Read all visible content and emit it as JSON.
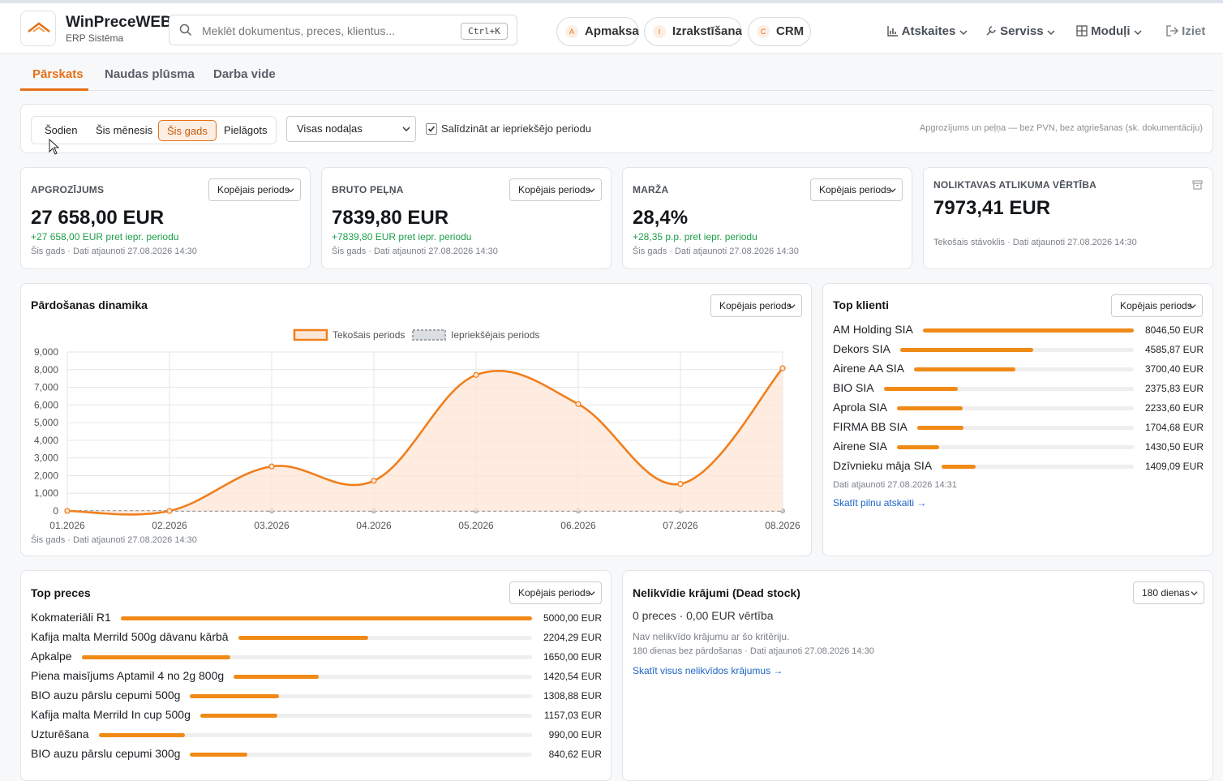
{
  "app": {
    "name": "WinPreceWEB",
    "subtitle": "ERP Sistēma"
  },
  "search": {
    "placeholder": "Meklēt dokumentus, preces, klientus...",
    "shortcut": "Ctrl+K"
  },
  "quick_links": [
    {
      "badge": "A",
      "label": "Apmaksa"
    },
    {
      "badge": "I",
      "label": "Izrakstīšana"
    },
    {
      "badge": "C",
      "label": "CRM"
    }
  ],
  "nav": {
    "reports": "Atskaites",
    "service": "Serviss",
    "modules": "Moduļi",
    "exit": "Iziet"
  },
  "tabs": [
    "Pārskats",
    "Naudas plūsma",
    "Darba vide"
  ],
  "filters": {
    "periods": [
      "Šodien",
      "Šis mēnesis",
      "Šis gads",
      "Pielāgots"
    ],
    "active_period": "Šis gads",
    "department": "Visas nodaļas",
    "compare_label": "Salīdzināt ar iepriekšējo periodu",
    "compare_checked": true,
    "note": "Apgrozījums un peļņa — bez PVN, bez atgriešanas (sk. dokumentāciju)"
  },
  "kpis": [
    {
      "label": "APGROZĪJUMS",
      "value": "27 658,00 EUR",
      "delta": "+27 658,00 EUR pret iepr. periodu",
      "footer": "Šis gads · Dati atjaunoti 27.08.2026 14:30",
      "select": "Kopējais periods"
    },
    {
      "label": "BRUTO PEĻŅA",
      "value": "7839,80 EUR",
      "delta": "+7839,80 EUR pret iepr. periodu",
      "footer": "Šis gads · Dati atjaunoti 27.08.2026 14:30",
      "select": "Kopējais periods"
    },
    {
      "label": "MARŽA",
      "value": "28,4%",
      "delta": "+28,35 p.p. pret iepr. periodu",
      "footer": "Šis gads · Dati atjaunoti 27.08.2026 14:30",
      "select": "Kopējais periods"
    },
    {
      "label": "NOLIKTAVAS ATLIKUMA VĒRTĪBA",
      "value": "7973,41 EUR",
      "footer": "Tekošais stāvoklis · Dati atjaunoti 27.08.2026 14:30",
      "icon": "archive-icon"
    }
  ],
  "sales_chart": {
    "title": "Pārdošanas dinamika",
    "select": "Kopējais periods",
    "footer": "Šis gads · Dati atjaunoti 27.08.2026 14:30"
  },
  "chart_data": {
    "type": "line",
    "categories": [
      "01.2026",
      "02.2026",
      "03.2026",
      "04.2026",
      "05.2026",
      "06.2026",
      "07.2026",
      "08.2026"
    ],
    "series": [
      {
        "name": "Tekošais periods",
        "values": [
          0,
          0,
          2520,
          1710,
          7700,
          6050,
          1530,
          8080
        ],
        "color": "#f07f1e",
        "filled": true
      },
      {
        "name": "Iepriekšējais periods",
        "values": [
          0,
          0,
          0,
          0,
          0,
          0,
          0,
          0
        ],
        "color": "#a0a4a8",
        "dashed": true
      }
    ],
    "ylim": [
      0,
      9000
    ],
    "yticks": [
      "0",
      "1,000",
      "2,000",
      "3,000",
      "4,000",
      "5,000",
      "6,000",
      "7,000",
      "8,000",
      "9,000"
    ],
    "grid": true,
    "legend": "top-center"
  },
  "top_clients": {
    "title": "Top klienti",
    "select": "Kopējais periods",
    "footer": "Dati atjaunoti 27.08.2026 14:31",
    "link": "Skatīt pilnu atskaiti →",
    "items": [
      {
        "name": "AM Holding SIA",
        "value": "8046,50 EUR",
        "amount": 8046.5
      },
      {
        "name": "Dekors SIA",
        "value": "4585,87 EUR",
        "amount": 4585.87
      },
      {
        "name": "Airene AA SIA",
        "value": "3700,40 EUR",
        "amount": 3700.4
      },
      {
        "name": "BIO SIA",
        "value": "2375,83 EUR",
        "amount": 2375.83
      },
      {
        "name": "Aprola SIA",
        "value": "2233,60 EUR",
        "amount": 2233.6
      },
      {
        "name": "FIRMA BB SIA",
        "value": "1704,68 EUR",
        "amount": 1704.68
      },
      {
        "name": "Airene SIA",
        "value": "1430,50 EUR",
        "amount": 1430.5
      },
      {
        "name": "Dzīvnieku māja SIA",
        "value": "1409,09 EUR",
        "amount": 1409.09
      }
    ]
  },
  "top_products": {
    "title": "Top preces",
    "select": "Kopējais periods",
    "items": [
      {
        "name": "Kokmateriāli R1",
        "value": "5000,00 EUR",
        "amount": 5000.0
      },
      {
        "name": "Kafija malta Merrild 500g dāvanu kārbā",
        "value": "2204,29 EUR",
        "amount": 2204.29
      },
      {
        "name": "Apkalpe",
        "value": "1650,00 EUR",
        "amount": 1650.0
      },
      {
        "name": "Piena maisījums Aptamil 4 no 2g 800g",
        "value": "1420,54 EUR",
        "amount": 1420.54
      },
      {
        "name": "BIO auzu pārslu cepumi 500g",
        "value": "1308,88 EUR",
        "amount": 1308.88
      },
      {
        "name": "Kafija malta Merrild In cup 500g",
        "value": "1157,03 EUR",
        "amount": 1157.03
      },
      {
        "name": "Uzturēšana",
        "value": "990,00 EUR",
        "amount": 990.0
      },
      {
        "name": "BIO auzu pārslu cepumi 300g",
        "value": "840,62 EUR",
        "amount": 840.62
      }
    ]
  },
  "dead_stock": {
    "title": "Nelikvīdie krājumi (Dead stock)",
    "select": "180 dienas",
    "summary": "0 preces · 0,00 EUR vērtība",
    "empty": "Nav nelikvīdo krājumu ar šo kritēriju.",
    "footer": "180 dienas bez pārdošanas · Dati atjaunoti 27.08.2026 14:30",
    "link": "Skatīt visus nelikvīdos krājumus →"
  },
  "colors": {
    "accent": "#e57016",
    "bar": "#f08a17",
    "positive": "#1e9e4a",
    "link": "#1d64c8"
  }
}
